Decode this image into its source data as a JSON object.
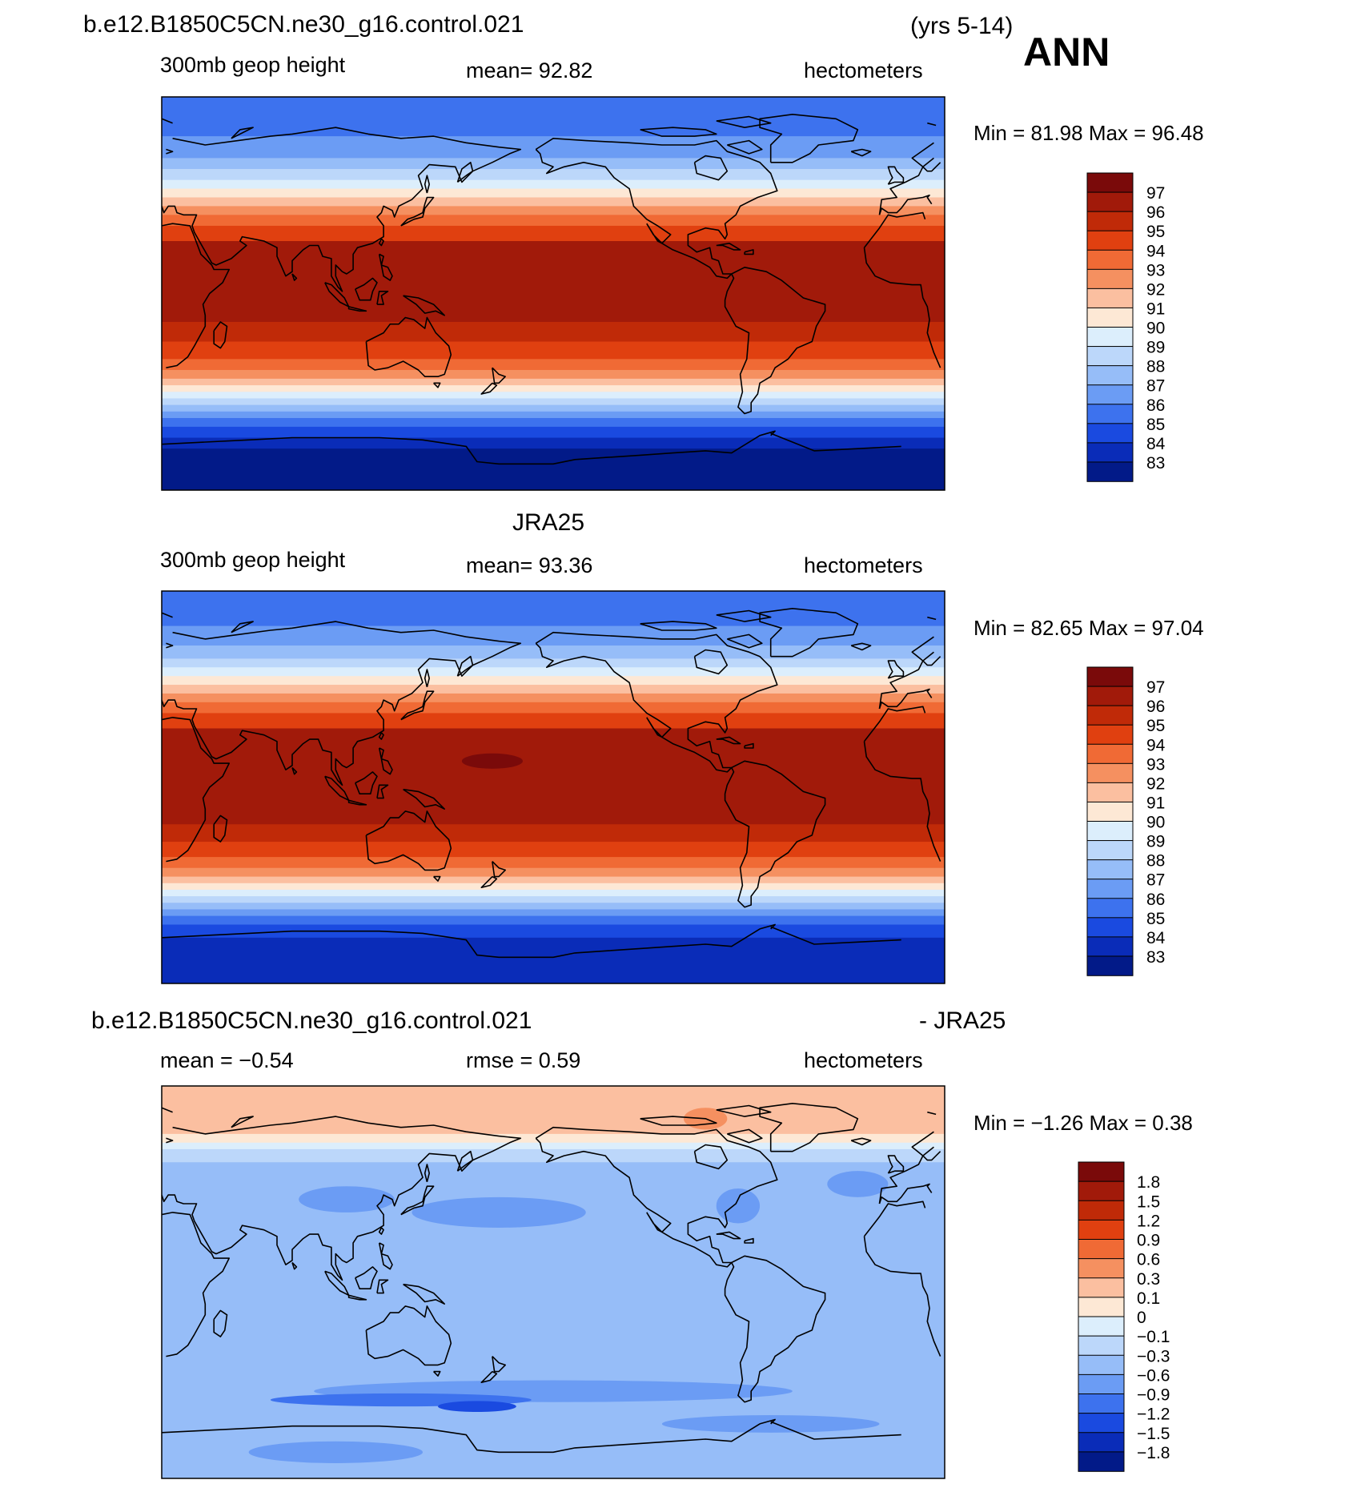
{
  "header": {
    "case_name": "b.e12.B1850C5CN.ne30_g16.control.021",
    "years": "(yrs 5-14)",
    "season": "ANN"
  },
  "panels": [
    {
      "id": "model",
      "title": "",
      "subtitle_left": "300mb  geop  height",
      "subtitle_center": "mean=   92.82",
      "subtitle_right": "hectometers",
      "minmax": "Min  =   81.98  Max  =   96.48",
      "colorbar_key": "abs"
    },
    {
      "id": "obs",
      "title": "JRA25",
      "subtitle_left": "300mb  geop  height",
      "subtitle_center": "mean=   93.36",
      "subtitle_right": "hectometers",
      "minmax": "Min  =   82.65  Max  =   97.04",
      "colorbar_key": "abs"
    },
    {
      "id": "diff",
      "title_left": "b.e12.B1850C5CN.ne30_g16.control.021",
      "title_right": "- JRA25",
      "subtitle_left": "mean  =   −0.54",
      "subtitle_center": "rmse  =     0.59",
      "subtitle_right": "hectometers",
      "minmax": "Min  =   −1.26  Max  =     0.38",
      "colorbar_key": "diff"
    }
  ],
  "colorbars": {
    "abs": {
      "labels": [
        "97",
        "96",
        "95",
        "94",
        "93",
        "92",
        "91",
        "90",
        "89",
        "88",
        "87",
        "86",
        "85",
        "84",
        "83"
      ],
      "colors": [
        "#7a0a0a",
        "#a11a0a",
        "#c02a08",
        "#e04010",
        "#f06a35",
        "#f59060",
        "#fbbfa0",
        "#fde8d5",
        "#dceefc",
        "#bcd7fa",
        "#96bdf8",
        "#6b9cf4",
        "#3d72ee",
        "#1a4ae0",
        "#0a2cb8",
        "#021a88"
      ]
    },
    "diff": {
      "labels": [
        "1.8",
        "1.5",
        "1.2",
        "0.9",
        "0.6",
        "0.3",
        "0.1",
        "0",
        "−0.1",
        "−0.3",
        "−0.6",
        "−0.9",
        "−1.2",
        "−1.5",
        "−1.8"
      ],
      "colors": [
        "#7a0a0a",
        "#a11a0a",
        "#c02a08",
        "#e04010",
        "#f06a35",
        "#f59060",
        "#fbbfa0",
        "#fde8d5",
        "#dceefc",
        "#bcd7fa",
        "#96bdf8",
        "#6b9cf4",
        "#3d72ee",
        "#1a4ae0",
        "#0a2cb8",
        "#021a88"
      ]
    }
  },
  "map_bands": {
    "model": [
      {
        "lat_top": 90,
        "lat_bot": 72,
        "color": "#3d72ee"
      },
      {
        "lat_top": 72,
        "lat_bot": 62,
        "color": "#6b9cf4"
      },
      {
        "lat_top": 62,
        "lat_bot": 57,
        "color": "#96bdf8"
      },
      {
        "lat_top": 57,
        "lat_bot": 52,
        "color": "#bcd7fa"
      },
      {
        "lat_top": 52,
        "lat_bot": 48,
        "color": "#dceefc"
      },
      {
        "lat_top": 48,
        "lat_bot": 44,
        "color": "#fde8d5"
      },
      {
        "lat_top": 44,
        "lat_bot": 40,
        "color": "#fbbfa0"
      },
      {
        "lat_top": 40,
        "lat_bot": 36,
        "color": "#f59060"
      },
      {
        "lat_top": 36,
        "lat_bot": 31,
        "color": "#f06a35"
      },
      {
        "lat_top": 31,
        "lat_bot": 24,
        "color": "#e04010"
      },
      {
        "lat_top": 24,
        "lat_bot": -13,
        "color": "#a11a0a"
      },
      {
        "lat_top": -13,
        "lat_bot": -22,
        "color": "#c02a08"
      },
      {
        "lat_top": -22,
        "lat_bot": -30,
        "color": "#e04010"
      },
      {
        "lat_top": -30,
        "lat_bot": -35,
        "color": "#f06a35"
      },
      {
        "lat_top": -35,
        "lat_bot": -39,
        "color": "#f59060"
      },
      {
        "lat_top": -39,
        "lat_bot": -42,
        "color": "#fbbfa0"
      },
      {
        "lat_top": -42,
        "lat_bot": -45,
        "color": "#fde8d5"
      },
      {
        "lat_top": -45,
        "lat_bot": -48,
        "color": "#dceefc"
      },
      {
        "lat_top": -48,
        "lat_bot": -51,
        "color": "#bcd7fa"
      },
      {
        "lat_top": -51,
        "lat_bot": -54,
        "color": "#96bdf8"
      },
      {
        "lat_top": -54,
        "lat_bot": -57,
        "color": "#6b9cf4"
      },
      {
        "lat_top": -57,
        "lat_bot": -61,
        "color": "#3d72ee"
      },
      {
        "lat_top": -61,
        "lat_bot": -66,
        "color": "#1a4ae0"
      },
      {
        "lat_top": -66,
        "lat_bot": -71,
        "color": "#0a2cb8"
      },
      {
        "lat_top": -71,
        "lat_bot": -90,
        "color": "#021a88"
      }
    ],
    "obs": [
      {
        "lat_top": 90,
        "lat_bot": 74,
        "color": "#3d72ee"
      },
      {
        "lat_top": 74,
        "lat_bot": 65,
        "color": "#6b9cf4"
      },
      {
        "lat_top": 65,
        "lat_bot": 59,
        "color": "#96bdf8"
      },
      {
        "lat_top": 59,
        "lat_bot": 55,
        "color": "#bcd7fa"
      },
      {
        "lat_top": 55,
        "lat_bot": 51,
        "color": "#dceefc"
      },
      {
        "lat_top": 51,
        "lat_bot": 47,
        "color": "#fde8d5"
      },
      {
        "lat_top": 47,
        "lat_bot": 43,
        "color": "#fbbfa0"
      },
      {
        "lat_top": 43,
        "lat_bot": 39,
        "color": "#f59060"
      },
      {
        "lat_top": 39,
        "lat_bot": 34,
        "color": "#f06a35"
      },
      {
        "lat_top": 34,
        "lat_bot": 27,
        "color": "#e04010"
      },
      {
        "lat_top": 27,
        "lat_bot": -17,
        "color": "#a11a0a"
      },
      {
        "lat_top": -17,
        "lat_bot": -25,
        "color": "#c02a08"
      },
      {
        "lat_top": -25,
        "lat_bot": -32,
        "color": "#e04010"
      },
      {
        "lat_top": -32,
        "lat_bot": -37,
        "color": "#f06a35"
      },
      {
        "lat_top": -37,
        "lat_bot": -41,
        "color": "#f59060"
      },
      {
        "lat_top": -41,
        "lat_bot": -44,
        "color": "#fbbfa0"
      },
      {
        "lat_top": -44,
        "lat_bot": -47,
        "color": "#fde8d5"
      },
      {
        "lat_top": -47,
        "lat_bot": -50,
        "color": "#dceefc"
      },
      {
        "lat_top": -50,
        "lat_bot": -53,
        "color": "#bcd7fa"
      },
      {
        "lat_top": -53,
        "lat_bot": -56,
        "color": "#96bdf8"
      },
      {
        "lat_top": -56,
        "lat_bot": -59,
        "color": "#6b9cf4"
      },
      {
        "lat_top": -59,
        "lat_bot": -63,
        "color": "#3d72ee"
      },
      {
        "lat_top": -63,
        "lat_bot": -69,
        "color": "#1a4ae0"
      },
      {
        "lat_top": -69,
        "lat_bot": -90,
        "color": "#0a2cb8"
      }
    ],
    "diff": [
      {
        "lat_top": 90,
        "lat_bot": 68,
        "color": "#fbbfa0"
      },
      {
        "lat_top": 68,
        "lat_bot": 64,
        "color": "#fde8d5"
      },
      {
        "lat_top": 64,
        "lat_bot": 61,
        "color": "#dceefc"
      },
      {
        "lat_top": 61,
        "lat_bot": 55,
        "color": "#bcd7fa"
      },
      {
        "lat_top": 55,
        "lat_bot": -90,
        "color": "#96bdf8"
      }
    ]
  },
  "map_blobs": {
    "obs": [
      {
        "lon": 172,
        "lat": 12,
        "rx_deg": 14,
        "ry_deg": 3.5,
        "color": "#7a0a0a"
      }
    ],
    "diff": [
      {
        "lon": 105,
        "lat": 38,
        "rx_deg": 22,
        "ry_deg": 6,
        "color": "#6b9cf4"
      },
      {
        "lon": 175,
        "lat": 32,
        "rx_deg": 40,
        "ry_deg": 7,
        "color": "#6b9cf4"
      },
      {
        "lon": 285,
        "lat": 35,
        "rx_deg": 10,
        "ry_deg": 8,
        "color": "#6b9cf4"
      },
      {
        "lon": 340,
        "lat": 45,
        "rx_deg": 14,
        "ry_deg": 6,
        "color": "#6b9cf4"
      },
      {
        "lon": 200,
        "lat": -50,
        "rx_deg": 110,
        "ry_deg": 5,
        "color": "#6b9cf4"
      },
      {
        "lon": 130,
        "lat": -54,
        "rx_deg": 60,
        "ry_deg": 3,
        "color": "#3d72ee"
      },
      {
        "lon": 165,
        "lat": -57,
        "rx_deg": 18,
        "ry_deg": 2.5,
        "color": "#1a4ae0"
      },
      {
        "lon": 300,
        "lat": -65,
        "rx_deg": 50,
        "ry_deg": 4,
        "color": "#6b9cf4"
      },
      {
        "lon": 100,
        "lat": -78,
        "rx_deg": 40,
        "ry_deg": 5,
        "color": "#6b9cf4"
      },
      {
        "lon": 270,
        "lat": 75,
        "rx_deg": 10,
        "ry_deg": 5,
        "color": "#f59060"
      }
    ]
  },
  "chart_data": [
    {
      "type": "heatmap",
      "title": "b.e12.B1850C5CN.ne30_g16.control.021 (yrs 5-14)",
      "variable": "300mb geop height",
      "units": "hectometers",
      "mean": 92.82,
      "min": 81.98,
      "max": 96.48,
      "levels": [
        83,
        84,
        85,
        86,
        87,
        88,
        89,
        90,
        91,
        92,
        93,
        94,
        95,
        96,
        97
      ]
    },
    {
      "type": "heatmap",
      "title": "JRA25",
      "variable": "300mb geop height",
      "units": "hectometers",
      "mean": 93.36,
      "min": 82.65,
      "max": 97.04,
      "levels": [
        83,
        84,
        85,
        86,
        87,
        88,
        89,
        90,
        91,
        92,
        93,
        94,
        95,
        96,
        97
      ]
    },
    {
      "type": "heatmap",
      "title": "b.e12.B1850C5CN.ne30_g16.control.021 - JRA25",
      "units": "hectometers",
      "mean": -0.54,
      "rmse": 0.59,
      "min": -1.26,
      "max": 0.38,
      "levels": [
        -1.8,
        -1.5,
        -1.2,
        -0.9,
        -0.6,
        -0.3,
        -0.1,
        0,
        0.1,
        0.3,
        0.6,
        0.9,
        1.2,
        1.5,
        1.8
      ]
    }
  ]
}
